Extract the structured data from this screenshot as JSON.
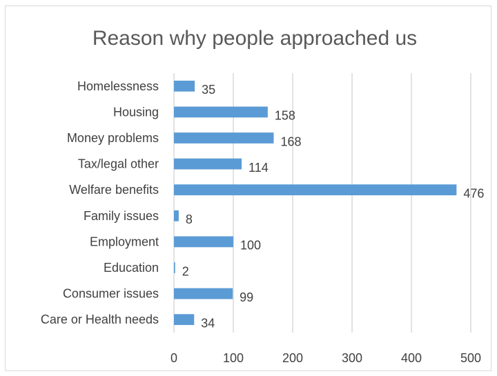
{
  "chart_data": {
    "type": "bar",
    "orientation": "horizontal",
    "title": "Reason why people approached us",
    "categories": [
      "Homelessness",
      "Housing",
      "Money problems",
      "Tax/legal other",
      "Welfare benefits",
      "Family issues",
      "Employment",
      "Education",
      "Consumer issues",
      "Care or Health needs"
    ],
    "values": [
      35,
      158,
      168,
      114,
      476,
      8,
      100,
      2,
      99,
      34
    ],
    "xlim": [
      0,
      500
    ],
    "x_ticks": [
      0,
      100,
      200,
      300,
      400,
      500
    ],
    "grid": "vertical",
    "legend": "none",
    "bar_color": "#5b9bd5",
    "grid_color": "#d9d9d9"
  }
}
